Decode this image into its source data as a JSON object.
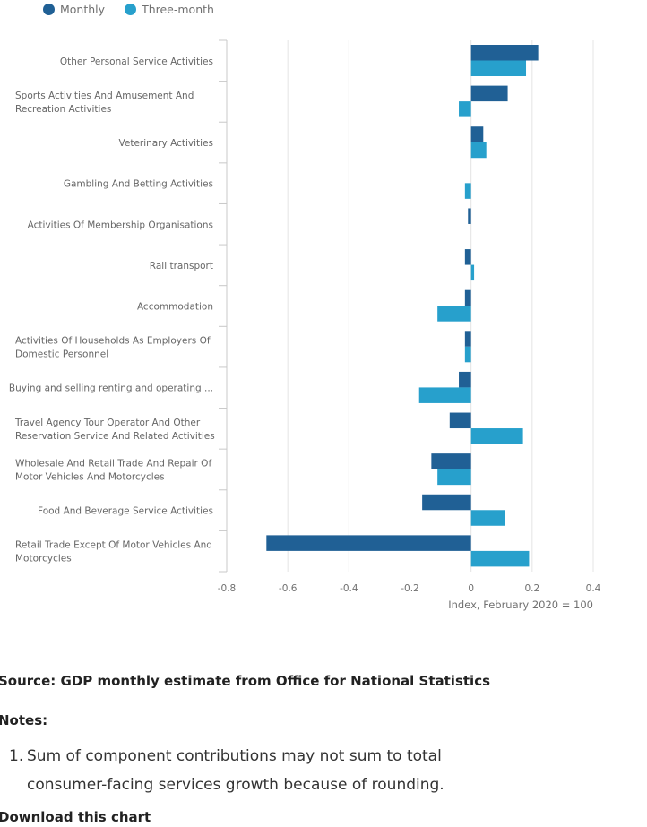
{
  "legend": [
    {
      "label": "Monthly",
      "color": "#206095"
    },
    {
      "label": "Three-month",
      "color": "#27a0cc"
    }
  ],
  "chart_data": {
    "type": "bar",
    "orientation": "horizontal",
    "title": "",
    "xlabel": "Index, February 2020 = 100",
    "ylabel": "",
    "xlim": [
      -0.8,
      0.4
    ],
    "xticks": [
      -0.8,
      -0.6,
      -0.4,
      -0.2,
      0,
      0.2,
      0.4
    ],
    "xtick_labels": [
      "-0.8",
      "-0.6",
      "-0.4",
      "-0.2",
      "0",
      "0.2",
      "0.4"
    ],
    "grid": true,
    "legend_position": "top-left",
    "categories": [
      [
        "Other Personal Service Activities"
      ],
      [
        "Sports Activities And Amusement And",
        "Recreation Activities"
      ],
      [
        "Veterinary Activities"
      ],
      [
        "Gambling And Betting Activities"
      ],
      [
        "Activities Of Membership Organisations"
      ],
      [
        "Rail transport"
      ],
      [
        "Accommodation"
      ],
      [
        "Activities Of Households As Employers Of",
        "Domestic Personnel"
      ],
      [
        "Buying and selling renting and operating ..."
      ],
      [
        "Travel Agency Tour Operator And Other",
        "Reservation Service And Related Activities"
      ],
      [
        "Wholesale And Retail Trade And Repair Of",
        "Motor Vehicles And Motorcycles"
      ],
      [
        "Food And Beverage Service Activities"
      ],
      [
        "Retail Trade Except Of Motor Vehicles And",
        "Motorcycles"
      ]
    ],
    "series": [
      {
        "name": "Monthly",
        "color": "#206095",
        "values": [
          0.22,
          0.12,
          0.04,
          0.0,
          -0.01,
          -0.02,
          -0.02,
          -0.02,
          -0.04,
          -0.07,
          -0.13,
          -0.16,
          -0.67
        ]
      },
      {
        "name": "Three-month",
        "color": "#27a0cc",
        "values": [
          0.18,
          -0.04,
          0.05,
          -0.02,
          0.0,
          0.01,
          -0.11,
          -0.02,
          -0.17,
          0.17,
          -0.11,
          0.11,
          0.19
        ]
      }
    ]
  },
  "source": "Source: GDP monthly estimate from Office for National Statistics",
  "notes": {
    "title": "Notes:",
    "items": [
      {
        "num": "1.",
        "text": "Sum of component contributions may not sum to total consumer-facing services growth because of rounding."
      }
    ]
  },
  "download_label": "Download this chart"
}
